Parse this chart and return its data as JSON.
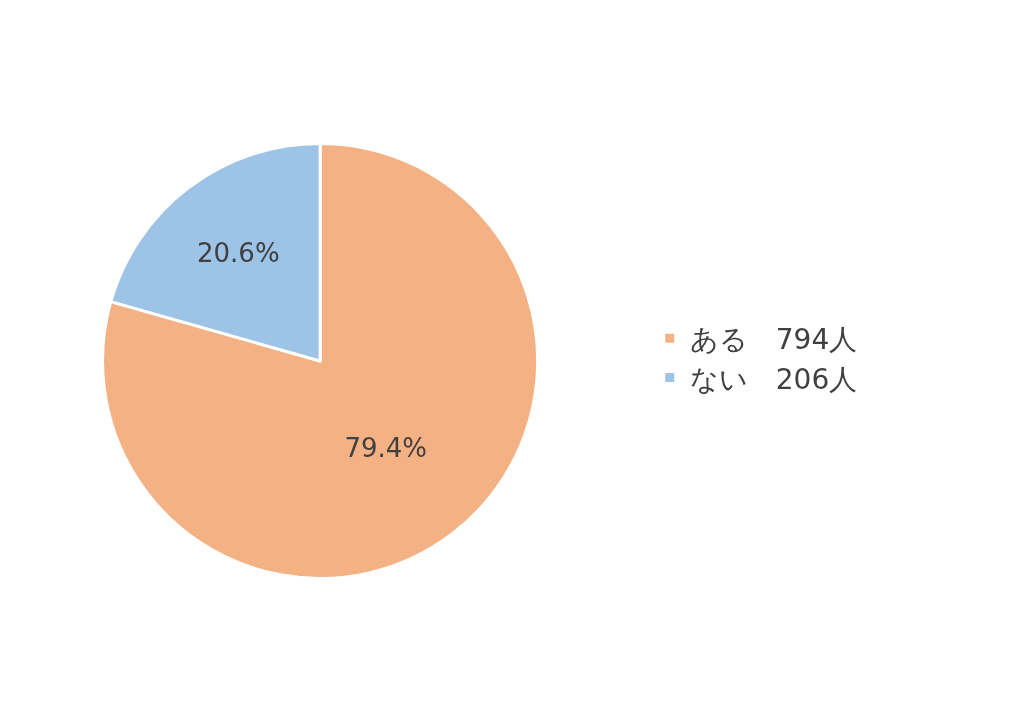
{
  "chart_data": {
    "type": "pie",
    "categories": [
      "ある　794人",
      "ない　206人"
    ],
    "values": [
      79.4,
      20.6
    ],
    "value_labels": [
      "79.4%",
      "20.6%"
    ],
    "colors": [
      "#f4b183",
      "#9dc3e6"
    ],
    "legend": "right"
  }
}
